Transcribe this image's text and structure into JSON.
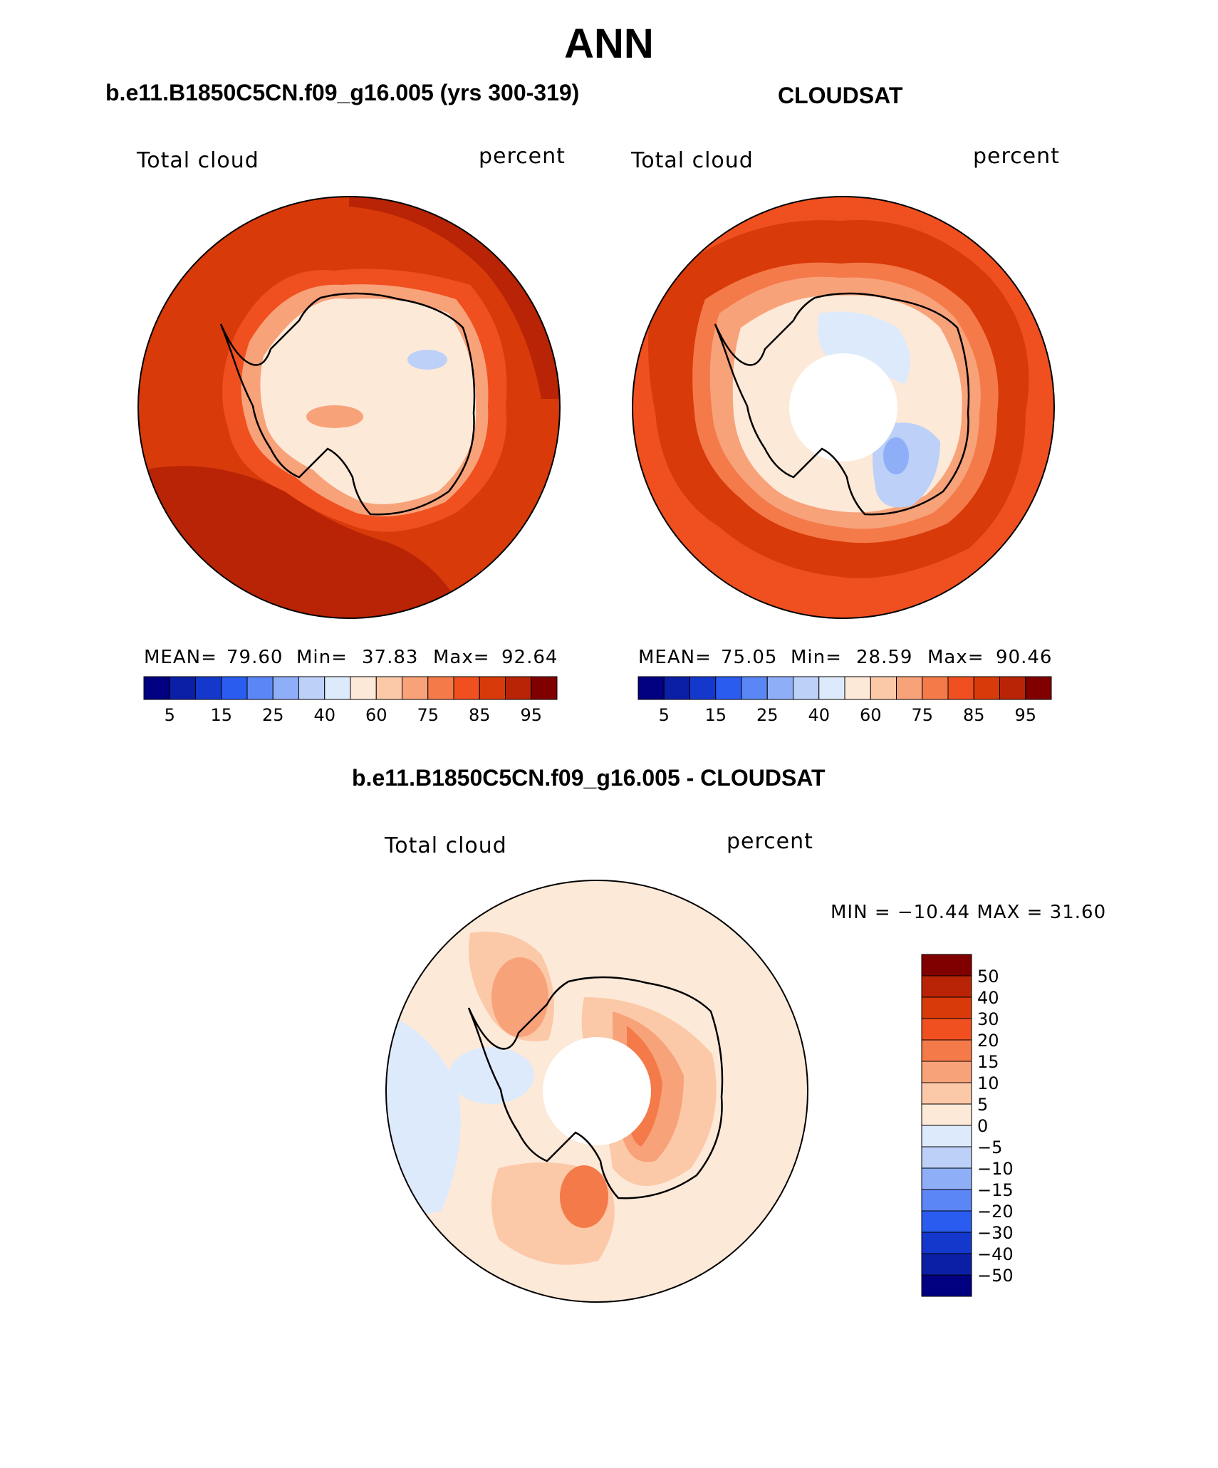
{
  "title": "ANN",
  "panels": [
    {
      "subtitle": "b.e11.B1850C5CN.f09_g16.005 (yrs 300-319)",
      "variable": "Total cloud",
      "units": "percent",
      "mean_label": "MEAN=",
      "mean": "79.60",
      "min_label": "Min=",
      "min": "37.83",
      "max_label": "Max=",
      "max": "92.64"
    },
    {
      "subtitle": "CLOUDSAT",
      "variable": "Total cloud",
      "units": "percent",
      "mean_label": "MEAN=",
      "mean": "75.05",
      "min_label": "Min=",
      "min": "28.59",
      "max_label": "Max=",
      "max": "90.46"
    },
    {
      "subtitle": "b.e11.B1850C5CN.f09_g16.005 - CLOUDSAT",
      "variable": "Total cloud",
      "units": "percent",
      "minmax": "MIN = −10.44 MAX =   31.60"
    }
  ],
  "colorbar_abs": {
    "tick_labels": [
      "5",
      "15",
      "25",
      "40",
      "60",
      "75",
      "85",
      "95"
    ],
    "colors": [
      "#000080",
      "#0a1fa6",
      "#1438cc",
      "#2a5cf0",
      "#5b86f5",
      "#8eaef7",
      "#bcd0f8",
      "#ddeafb",
      "#fde9d8",
      "#fbc9a8",
      "#f8a27a",
      "#f47a4a",
      "#f05020",
      "#d83a0a",
      "#b82405",
      "#800000"
    ]
  },
  "colorbar_diff": {
    "tick_labels": [
      "50",
      "40",
      "30",
      "20",
      "15",
      "10",
      "5",
      "0",
      "−5",
      "−10",
      "−15",
      "−20",
      "−30",
      "−40",
      "−50"
    ],
    "colors": [
      "#800000",
      "#b82405",
      "#d83a0a",
      "#f05020",
      "#f47a4a",
      "#f8a27a",
      "#fbc9a8",
      "#fde9d8",
      "#ddeafb",
      "#bcd0f8",
      "#8eaef7",
      "#5b86f5",
      "#2a5cf0",
      "#1438cc",
      "#0a1fa6",
      "#000080"
    ]
  }
}
